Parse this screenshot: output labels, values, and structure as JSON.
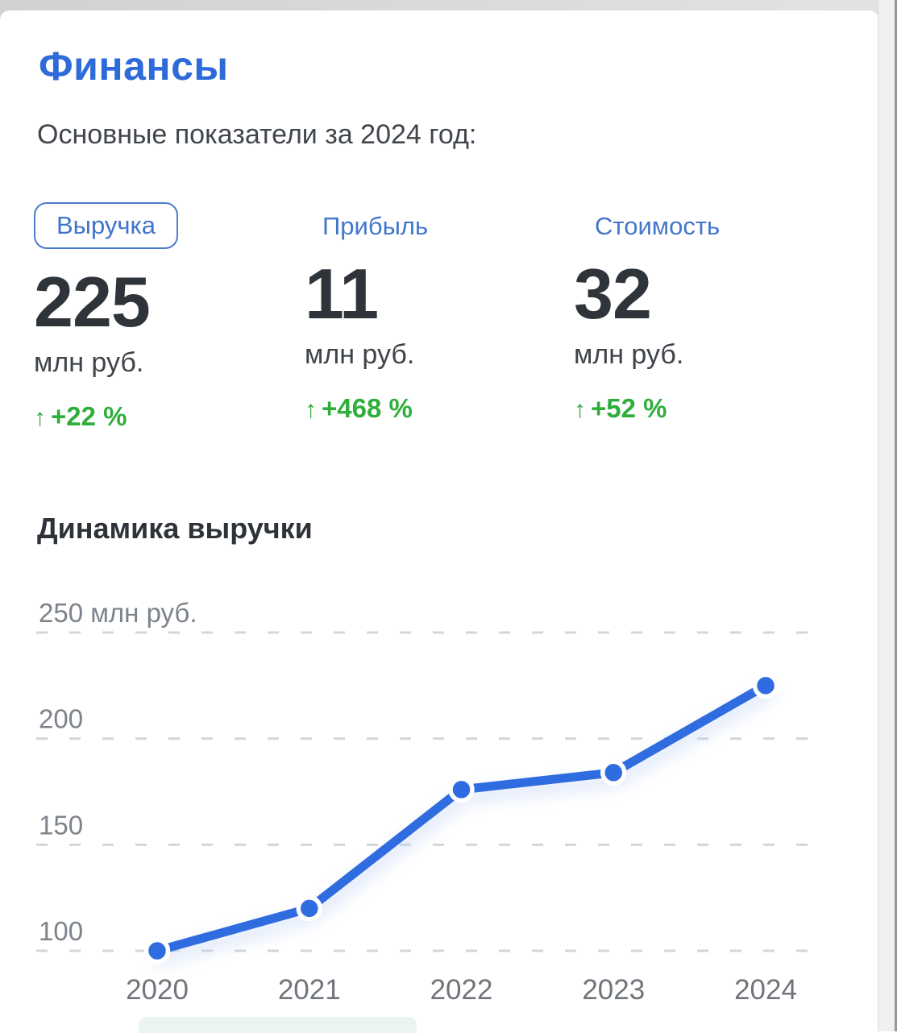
{
  "page": {
    "title": "Финансы",
    "subtitle": "Основные показатели за 2024 год:"
  },
  "metrics": [
    {
      "label": "Выручка",
      "value": "225",
      "unit": "млн руб.",
      "arrow": "↑",
      "change": "+22 %",
      "selected": true
    },
    {
      "label": "Прибыль",
      "value": "11",
      "unit": "млн руб.",
      "arrow": "↑",
      "change": "+468 %",
      "selected": false
    },
    {
      "label": "Стоимость",
      "value": "32",
      "unit": "млн руб.",
      "arrow": "↑",
      "change": "+52 %",
      "selected": false
    }
  ],
  "chart_section_title": "Динамика выручки",
  "chart_data": {
    "type": "line",
    "title": "Динамика выручки",
    "x": [
      "2020",
      "2021",
      "2022",
      "2023",
      "2024"
    ],
    "values": [
      100,
      120,
      176,
      184,
      225
    ],
    "series_name": "Выручка",
    "ylabel": "млн руб.",
    "yticks": [
      100,
      150,
      200,
      250
    ],
    "ytick_labels": [
      "100",
      "150",
      "200",
      "250 млн руб."
    ],
    "ylim": [
      85,
      262
    ],
    "grid": "horizontal-dashed",
    "legend": "none"
  },
  "colors": {
    "accent_blue": "#2e6bd9",
    "link_blue": "#4377cd",
    "line_blue": "#2f6ce0",
    "positive_green": "#2fae3b",
    "grid_gray": "#d3d6da",
    "axis_label_gray": "#7d838a",
    "x_label_gray": "#70757c",
    "number_dark": "#2f343b",
    "mint_bar": "#e9f5ee"
  }
}
